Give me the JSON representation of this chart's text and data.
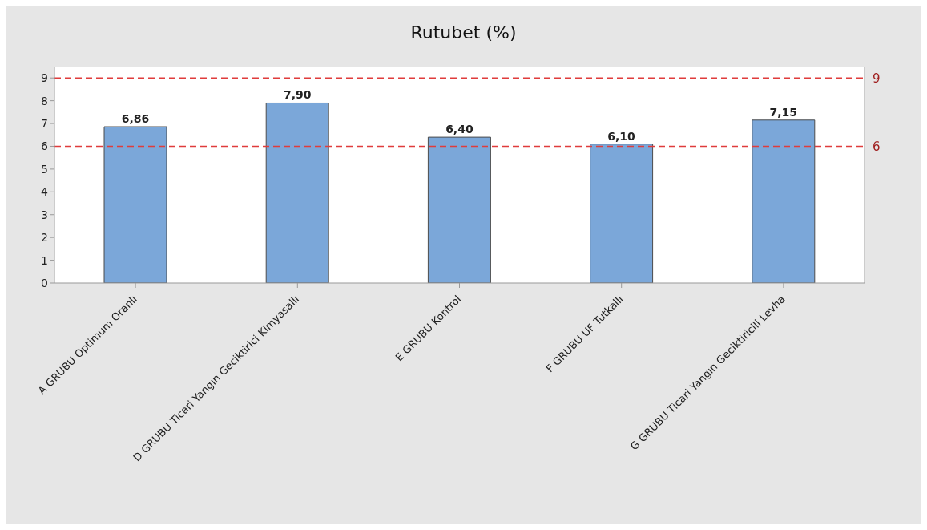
{
  "chart_data": {
    "type": "bar",
    "title": "Rutubet (%)",
    "categories": [
      "A GRUBU Optimum Oranlı",
      "D GRUBU Ticari Yangın Geciktirici Kimyasallı",
      "E GRUBU Kontrol",
      "F GRUBU UF Tutkallı",
      "G GRUBU Ticari Yangın Geciktiricili Levha"
    ],
    "values": [
      6.86,
      7.9,
      6.4,
      6.1,
      7.15
    ],
    "value_labels": [
      "6,86",
      "7,90",
      "6,40",
      "6,10",
      "7,15"
    ],
    "color": "#7ba7d9",
    "ylim": [
      0,
      9.5
    ],
    "yticks": [
      0,
      1,
      2,
      3,
      4,
      5,
      6,
      7,
      8,
      9
    ],
    "ref_lines": [
      {
        "axis": "y",
        "value": 9,
        "label": "9",
        "color": "#e03c3c",
        "line_style": "dashed"
      },
      {
        "axis": "y",
        "value": 6,
        "label": "6",
        "color": "#e03c3c",
        "line_style": "dashed"
      }
    ]
  }
}
